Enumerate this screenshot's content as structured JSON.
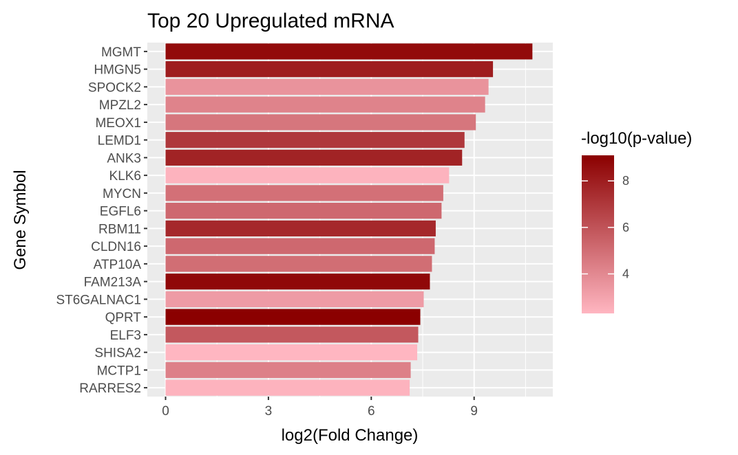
{
  "chart_data": {
    "type": "bar",
    "orientation": "horizontal",
    "title": "Top 20 Upregulated mRNA",
    "xlabel": "log2(Fold Change)",
    "ylabel": "Gene Symbol",
    "xlim": [
      0,
      11.2
    ],
    "xticks": [
      0,
      3,
      6,
      9
    ],
    "grid": true,
    "legend_position": "right",
    "categories": [
      "MGMT",
      "HMGN5",
      "SPOCK2",
      "MPZL2",
      "MEOX1",
      "LEMD1",
      "ANK3",
      "KLK6",
      "MYCN",
      "EGFL6",
      "RBM11",
      "CLDN16",
      "ATP10A",
      "FAM213A",
      "ST6GALNAC1",
      "QPRT",
      "ELF3",
      "SHISA2",
      "MCTP1",
      "RARRES2"
    ],
    "values": [
      10.7,
      9.55,
      9.42,
      9.32,
      9.05,
      8.72,
      8.65,
      8.27,
      8.1,
      8.05,
      7.88,
      7.85,
      7.77,
      7.71,
      7.53,
      7.43,
      7.37,
      7.34,
      7.15,
      7.12
    ],
    "color_values": [
      8.7,
      8.0,
      3.6,
      4.2,
      4.7,
      7.0,
      7.8,
      2.4,
      4.9,
      5.2,
      7.6,
      5.2,
      5.0,
      8.8,
      3.3,
      9.1,
      5.8,
      2.3,
      4.3,
      2.4
    ],
    "color_scale": {
      "title": "-log10(p-value)",
      "low": 2.3,
      "high": 9.1,
      "low_color": "#FFB6C1",
      "high_color": "#8B0000",
      "ticks": [
        4,
        6,
        8
      ]
    }
  }
}
